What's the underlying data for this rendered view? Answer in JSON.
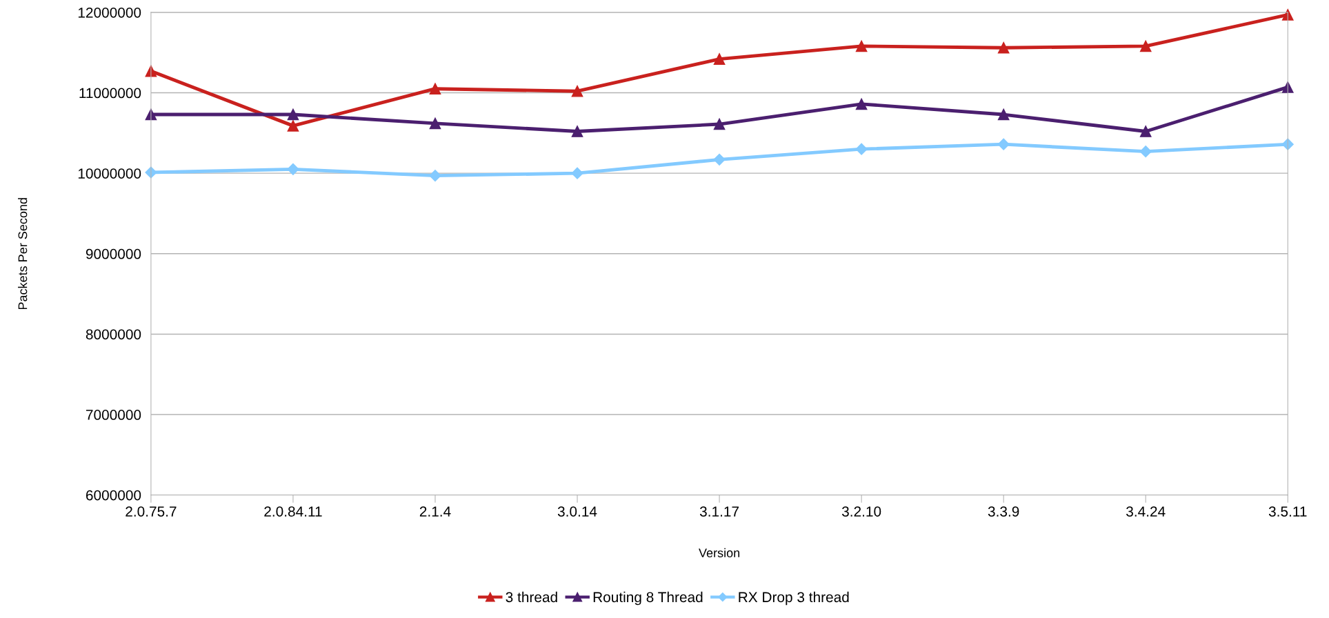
{
  "chart_data": {
    "type": "line",
    "xlabel": "Version",
    "ylabel": "Packets Per Second",
    "categories": [
      "2.0.75.7",
      "2.0.84.11",
      "2.1.4",
      "3.0.14",
      "3.1.17",
      "3.2.10",
      "3.3.9",
      "3.4.24",
      "3.5.11"
    ],
    "series": [
      {
        "name": "3 thread",
        "color": "#c9211e",
        "marker": "triangle",
        "values": [
          11270000,
          10590000,
          11050000,
          11020000,
          11420000,
          11580000,
          11560000,
          11580000,
          11970000
        ]
      },
      {
        "name": "Routing 8 Thread",
        "color": "#4b1f6f",
        "marker": "triangle",
        "values": [
          10730000,
          10730000,
          10620000,
          10520000,
          10610000,
          10860000,
          10730000,
          10520000,
          11070000
        ]
      },
      {
        "name": "RX Drop 3 thread",
        "color": "#83caff",
        "marker": "diamond",
        "values": [
          10010000,
          10050000,
          9970000,
          10000000,
          10170000,
          10300000,
          10360000,
          10270000,
          10360000
        ]
      }
    ],
    "ylim": [
      6000000,
      12000000
    ],
    "yticks": [
      6000000,
      7000000,
      8000000,
      9000000,
      10000000,
      11000000,
      12000000
    ],
    "grid": "y",
    "legend": "bottom",
    "line_style": "solid"
  }
}
